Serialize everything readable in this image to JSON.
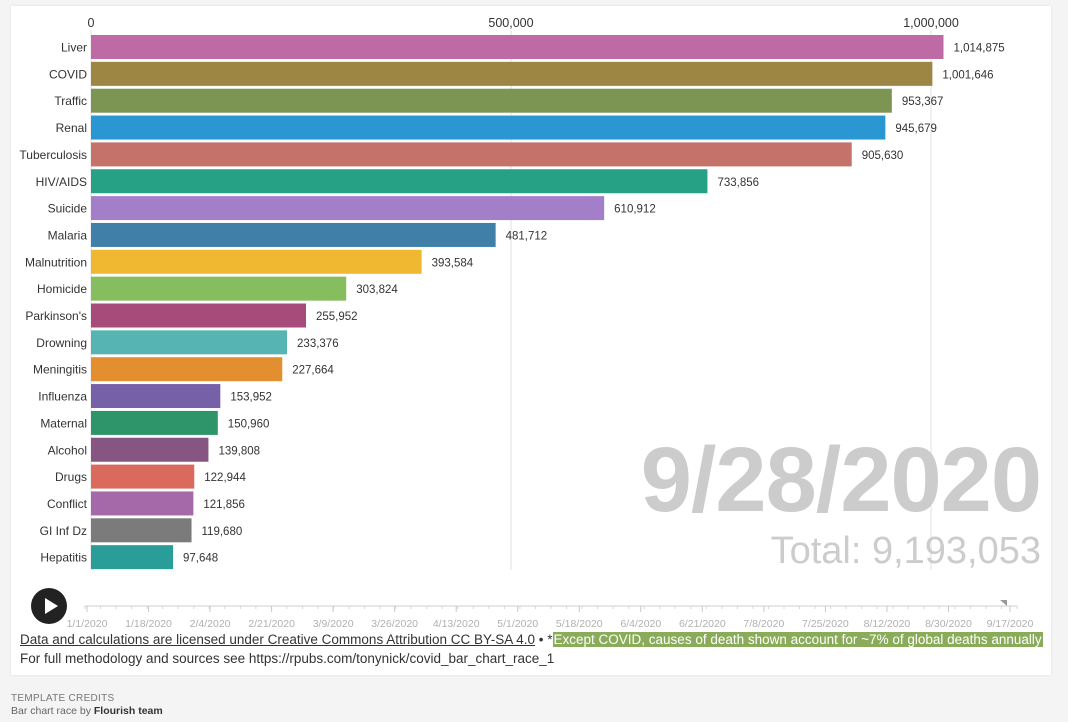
{
  "chart_data": {
    "type": "bar",
    "orientation": "horizontal",
    "date": "9/28/2020",
    "total_label": "Total: 9,193,053",
    "xlim": [
      0,
      1070000
    ],
    "x_ticks": [
      "0",
      "500,000",
      "1,000,000"
    ],
    "x_tick_values": [
      0,
      500000,
      1000000
    ],
    "grid": true,
    "categories": [
      "Liver",
      "COVID",
      "Traffic",
      "Renal",
      "Tuberculosis",
      "HIV/AIDS",
      "Suicide",
      "Malaria",
      "Malnutrition",
      "Homicide",
      "Parkinson's",
      "Drowning",
      "Meningitis",
      "Influenza",
      "Maternal",
      "Alcohol",
      "Drugs",
      "Conflict",
      "GI Inf Dz",
      "Hepatitis"
    ],
    "values": [
      1014875,
      1001646,
      953367,
      945679,
      905630,
      733856,
      610912,
      481712,
      393584,
      303824,
      255952,
      233376,
      227664,
      153952,
      150960,
      139808,
      122944,
      121856,
      119680,
      97648
    ],
    "value_labels": [
      "1,014,875",
      "1,001,646",
      "953,367",
      "945,679",
      "905,630",
      "733,856",
      "610,912",
      "481,712",
      "393,584",
      "303,824",
      "255,952",
      "233,376",
      "227,664",
      "153,952",
      "150,960",
      "139,808",
      "122,944",
      "121,856",
      "119,680",
      "97,648"
    ],
    "colors": [
      "#bd6aa5",
      "#9d8544",
      "#7d9553",
      "#2a96d2",
      "#c5726a",
      "#27a186",
      "#a27fc8",
      "#3f7fa8",
      "#f0b830",
      "#86bd5e",
      "#a74b7b",
      "#56b4b2",
      "#e48f2f",
      "#7660a8",
      "#2e9469",
      "#865581",
      "#d96a5c",
      "#a568a8",
      "#7b7b7b",
      "#2a9d98"
    ]
  },
  "timeline": {
    "labels": [
      "1/1/2020",
      "1/18/2020",
      "2/4/2020",
      "2/21/2020",
      "3/9/2020",
      "3/26/2020",
      "4/13/2020",
      "5/1/2020",
      "5/18/2020",
      "6/4/2020",
      "6/21/2020",
      "7/8/2020",
      "7/25/2020",
      "8/12/2020",
      "8/30/2020",
      "9/17/2020"
    ],
    "progress": 0.985
  },
  "footer": {
    "license": "Data and calculations are licensed under Creative Commons Attribution CC BY-SA 4.0",
    "separator": " • *",
    "note": "Except COVID, causes of death shown account for ~7% of global deaths annually",
    "methodology": "For full methodology and sources see https://rpubs.com/tonynick/covid_bar_chart_race_1"
  },
  "credits": {
    "heading": "TEMPLATE CREDITS",
    "prefix": "Bar chart race by ",
    "author": "Flourish team"
  }
}
